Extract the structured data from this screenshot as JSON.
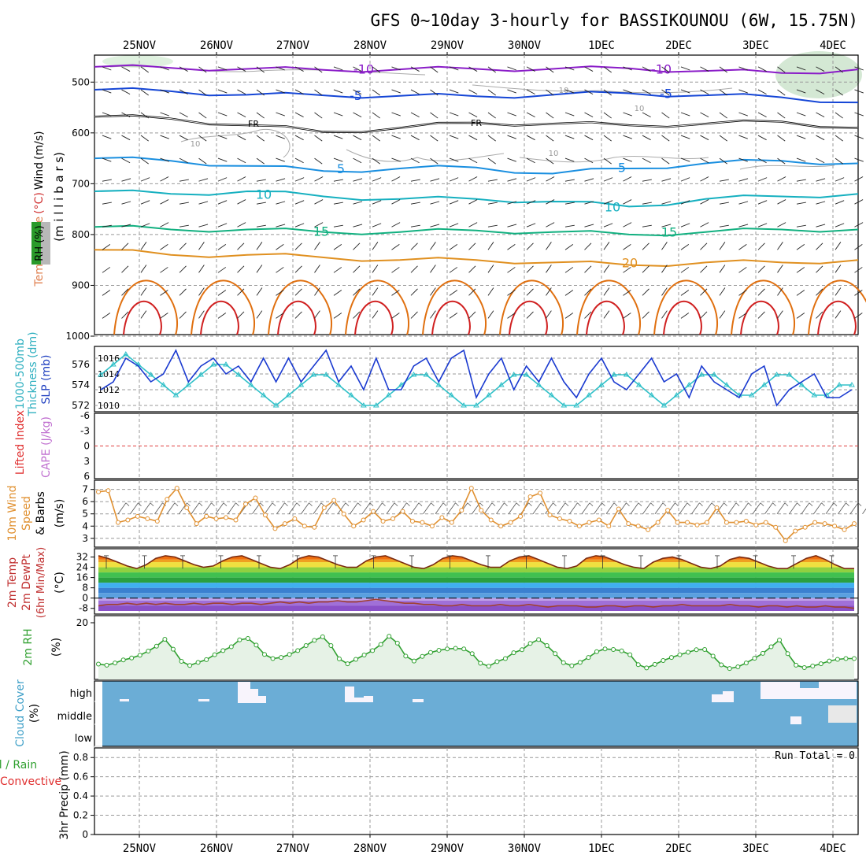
{
  "title": "GFS 0~10day 3-hourly for BASSIKOUNOU (6W, 15.75N)",
  "dates": [
    "25NOV",
    "26NOV",
    "27NOV",
    "28NOV",
    "29NOV",
    "30NOV",
    "1DEC",
    "2DEC",
    "3DEC",
    "4DEC"
  ],
  "colors": {
    "purple": "#8a1cc8",
    "blue": "#1546d6",
    "lightblue": "#1a8fe0",
    "cyan": "#16b0c0",
    "green": "#12b080",
    "orange": "#e09020",
    "darkorange": "#e07010",
    "red": "#d02020",
    "slp": "#1a3ad0",
    "thickness": "#30c0c8",
    "wind10": "#e09030",
    "rh": "#30a030",
    "cloud": "#6badd6",
    "grid": "#999999"
  },
  "panels": {
    "upper": {
      "ylabel_parts": [
        "Temperature",
        "(°C)",
        "Wind",
        "(m/s)"
      ],
      "rh_label": "RH (%)",
      "mb_label": "(m i l l i b a r s)",
      "yticks": [
        "500",
        "600",
        "700",
        "800",
        "900",
        "1000"
      ],
      "contour_labels": [
        "-10",
        "-10",
        "-5",
        "-5",
        "FR",
        "FR",
        "5",
        "5",
        "10",
        "10",
        "15",
        "15",
        "20",
        "10",
        "10",
        "10",
        "10"
      ]
    },
    "slp": {
      "label_thickness": "Thickness (dm)",
      "label_1000": "1000-500mb",
      "label_slp": "SLP (mb)",
      "left_ticks": [
        "576",
        "574",
        "572"
      ],
      "right_ticks": [
        "1016",
        "1014",
        "1012",
        "1010"
      ]
    },
    "li": {
      "label_li": "Lifted Index",
      "label_cape": "CAPE (J/kg)",
      "ticks": [
        "-6",
        "-3",
        "0",
        "3",
        "6"
      ]
    },
    "wind10": {
      "label_a": "10m Wind",
      "label_b": "Speed",
      "label_c": "& Barbs",
      "label_d": "(m/s)",
      "ticks": [
        "7",
        "6",
        "5",
        "4",
        "3"
      ]
    },
    "temp2m": {
      "label_a": "2m Temp",
      "label_b": "2m DewPt",
      "label_c": "(6hr Min/Max)",
      "label_d": "(°C)",
      "ticks": [
        "32",
        "24",
        "16",
        "8",
        "0",
        "-8"
      ]
    },
    "rh2m": {
      "label_a": "2m RH",
      "label_b": "(%)",
      "ticks": [
        "20"
      ]
    },
    "cloud": {
      "label_a": "Cloud Cover",
      "label_b": "(%)",
      "levels": [
        "high",
        "middle",
        "low"
      ]
    },
    "precip": {
      "label_total": "Total / Rain",
      "label_conv": "Convective",
      "label_axis": "3hr Precip (mm)",
      "ticks": [
        "0.8",
        "0.6",
        "0.4",
        "0.2",
        "0"
      ],
      "run_total": "Run Total = 0"
    }
  },
  "chart_data": [
    {
      "type": "line",
      "name": "upper-air cross-section",
      "ylabel": "Temperature (°C) Wind (m/s)",
      "y_axis": "pressure (millibars)",
      "ylim": [
        1000,
        450
      ],
      "isotherms": [
        {
          "level": "-10",
          "pressure": [
            470,
            472,
            474,
            476,
            475,
            474,
            474,
            473,
            478,
            482,
            475
          ]
        },
        {
          "level": "-5",
          "pressure": [
            515,
            518,
            525,
            526,
            527,
            528,
            525,
            522,
            526,
            530,
            540
          ]
        },
        {
          "level": "FR",
          "pressure": [
            568,
            572,
            585,
            598,
            590,
            580,
            582,
            585,
            582,
            578,
            590
          ]
        },
        {
          "level": "5",
          "pressure": [
            650,
            655,
            665,
            675,
            670,
            668,
            680,
            670,
            660,
            655,
            660
          ]
        },
        {
          "level": "10",
          "pressure": [
            715,
            720,
            715,
            725,
            730,
            730,
            735,
            745,
            730,
            725,
            720
          ]
        },
        {
          "level": "15",
          "pressure": [
            785,
            790,
            790,
            795,
            795,
            792,
            795,
            800,
            795,
            790,
            790
          ]
        },
        {
          "level": "20",
          "pressure": [
            830,
            840,
            840,
            845,
            850,
            850,
            855,
            860,
            855,
            855,
            850
          ]
        }
      ]
    },
    {
      "type": "line",
      "name": "SLP and thickness",
      "series": [
        {
          "name": "SLP (mb)",
          "values": [
            1012,
            1013,
            1016,
            1015,
            1013,
            1014,
            1017,
            1013,
            1015,
            1016,
            1014,
            1015,
            1013,
            1016,
            1013,
            1016,
            1013,
            1015,
            1017,
            1013,
            1015,
            1012,
            1016,
            1012,
            1012,
            1015,
            1016,
            1013,
            1016,
            1017,
            1011,
            1014,
            1016,
            1012,
            1015,
            1013,
            1016,
            1013,
            1011,
            1014,
            1016,
            1013,
            1012,
            1014,
            1016,
            1013,
            1014,
            1011,
            1015,
            1013,
            1012,
            1011,
            1014,
            1015,
            1010,
            1012,
            1013,
            1014,
            1011,
            1011,
            1012
          ]
        },
        {
          "name": "1000-500mb Thickness (dm)",
          "values": [
            575,
            576,
            577,
            576,
            575,
            574,
            573,
            574,
            575,
            576,
            576,
            575,
            574,
            573,
            572,
            573,
            574,
            575,
            575,
            574,
            573,
            572,
            572,
            573,
            574,
            575,
            575,
            574,
            573,
            572,
            572,
            573,
            574,
            575,
            575,
            574,
            573,
            572,
            572,
            573,
            574,
            575,
            575,
            574,
            573,
            572,
            573,
            574,
            575,
            575,
            574,
            573,
            573,
            574,
            575,
            575,
            574,
            573,
            573,
            574,
            574
          ]
        }
      ]
    },
    {
      "type": "line",
      "name": "Lifted Index / CAPE",
      "ylim": [
        6,
        -6
      ],
      "series": [
        {
          "name": "Lifted Index",
          "values": []
        }
      ]
    },
    {
      "type": "line",
      "name": "10m wind speed",
      "ylim": [
        2.5,
        7.5
      ],
      "series": [
        {
          "name": "10m Wind Speed",
          "values": [
            6.8,
            6.9,
            4.3,
            4.5,
            4.8,
            4.6,
            4.4,
            6.2,
            7.1,
            5.5,
            4.2,
            4.8,
            4.6,
            4.7,
            4.5,
            5.8,
            6.3,
            4.9,
            3.8,
            4.2,
            4.6,
            4.0,
            3.9,
            5.5,
            6.1,
            5.0,
            4.0,
            4.5,
            5.2,
            4.4,
            4.6,
            5.2,
            4.4,
            4.3,
            4.0,
            4.7,
            4.3,
            5.3,
            7.1,
            5.3,
            4.5,
            4.0,
            4.3,
            4.8,
            6.4,
            6.7,
            4.9,
            4.6,
            4.4,
            4.0,
            4.3,
            4.5,
            4.0,
            5.4,
            4.2,
            4.0,
            3.7,
            4.3,
            5.3,
            4.3,
            4.3,
            4.1,
            4.3,
            5.5,
            4.3,
            4.3,
            4.4,
            4.1,
            4.3,
            3.9,
            2.8,
            3.6,
            3.9,
            4.3,
            4.2,
            4.0,
            3.7,
            4.2
          ]
        }
      ]
    },
    {
      "type": "area",
      "name": "2m temperature and dewpoint",
      "ylim": [
        -10,
        36
      ],
      "series": [
        {
          "name": "2m Temp",
          "values": [
            33,
            31,
            28,
            25,
            23,
            26,
            31,
            33,
            32,
            29,
            26,
            24,
            25,
            29,
            32,
            33,
            30,
            27,
            24,
            23,
            26,
            31,
            33,
            32,
            29,
            26,
            24,
            24,
            29,
            32,
            33,
            30,
            27,
            24,
            23,
            26,
            31,
            33,
            32,
            29,
            26,
            24,
            24,
            29,
            32,
            33,
            30,
            27,
            24,
            23,
            25,
            31,
            33,
            32,
            29,
            26,
            24,
            23,
            28,
            31,
            32,
            30,
            27,
            24,
            23,
            25,
            30,
            32,
            31,
            28,
            25,
            23,
            23,
            27,
            31,
            33,
            30,
            26,
            23,
            23
          ]
        },
        {
          "name": "2m DewPt",
          "values": [
            -6,
            -5,
            -5,
            -4,
            -5,
            -4,
            -5,
            -4,
            -5,
            -5,
            -4,
            -5,
            -4,
            -4,
            -5,
            -4,
            -4,
            -5,
            -4,
            -3,
            -4,
            -3,
            -4,
            -3,
            -3,
            -2,
            -3,
            -3,
            -2,
            -1,
            -2,
            -3,
            -4,
            -4,
            -5,
            -5,
            -6,
            -6,
            -5,
            -6,
            -6,
            -6,
            -5,
            -6,
            -6,
            -5,
            -6,
            -7,
            -6,
            -6,
            -6,
            -7,
            -7,
            -6,
            -6,
            -7,
            -6,
            -6,
            -7,
            -6,
            -6,
            -5,
            -6,
            -6,
            -6,
            -6,
            -5,
            -6,
            -6,
            -7,
            -6,
            -6,
            -7,
            -6,
            -7,
            -7,
            -6,
            -7,
            -7,
            -8
          ]
        }
      ]
    },
    {
      "type": "line",
      "name": "2m relative humidity",
      "ylim": [
        0,
        22
      ],
      "series": [
        {
          "name": "2m RH",
          "values": [
            5.0,
            4.6,
            5.4,
            6.5,
            7.2,
            8.2,
            9.7,
            11.5,
            14.0,
            10.4,
            6.0,
            4.5,
            5.6,
            6.6,
            8.4,
            9.9,
            11.3,
            13.8,
            14.3,
            11.9,
            8.5,
            7.0,
            7.4,
            8.5,
            9.9,
            11.7,
            13.6,
            14.9,
            11.7,
            6.9,
            5.1,
            6.7,
            8.3,
            9.9,
            12.1,
            15.1,
            12.6,
            7.9,
            6.1,
            7.8,
            9.2,
            10.0,
            10.5,
            10.7,
            10.5,
            8.8,
            5.3,
            4.2,
            5.9,
            7.0,
            9.1,
            10.2,
            12.5,
            13.9,
            11.7,
            8.8,
            5.5,
            4.4,
            5.6,
            7.4,
            9.5,
            10.5,
            10.3,
            9.8,
            8.4,
            4.8,
            3.6,
            4.9,
            6.3,
            7.4,
            8.4,
            9.3,
            10.2,
            10.3,
            7.9,
            4.7,
            3.4,
            4.0,
            5.4,
            7.1,
            8.9,
            11.3,
            13.7,
            8.8,
            4.6,
            3.7,
            4.3,
            5.1,
            6.1,
            6.7,
            7.0,
            7.0
          ]
        }
      ]
    },
    {
      "type": "heatmap",
      "name": "cloud cover",
      "rows": [
        "high",
        "middle",
        "low"
      ],
      "note_values": "mostly clear; high cloud near start of 3DEC onward, middle cloud at end"
    },
    {
      "type": "line",
      "name": "3hr precipitation",
      "ylim": [
        0,
        0.9
      ],
      "series": [
        {
          "name": "3hr Precip",
          "values": []
        }
      ]
    }
  ]
}
